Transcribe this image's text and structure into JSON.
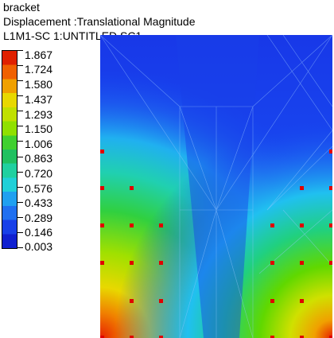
{
  "header": {
    "model": "bracket",
    "result": "Displacement :Translational Magnitude",
    "case": "L1M1-SC 1:UNTITLED SC1"
  },
  "legend": {
    "values": [
      "1.867",
      "1.724",
      "1.580",
      "1.437",
      "1.293",
      "1.150",
      "1.006",
      "0.863",
      "0.720",
      "0.576",
      "0.433",
      "0.289",
      "0.146",
      "0.003"
    ],
    "colors": [
      "#e02000",
      "#f06000",
      "#f0a000",
      "#e8d800",
      "#c0e000",
      "#90e000",
      "#40d030",
      "#20c060",
      "#20d0a0",
      "#20d0d8",
      "#20a0f0",
      "#2070f0",
      "#1840e8",
      "#1020d0"
    ]
  },
  "constraint_color": "#e00000"
}
